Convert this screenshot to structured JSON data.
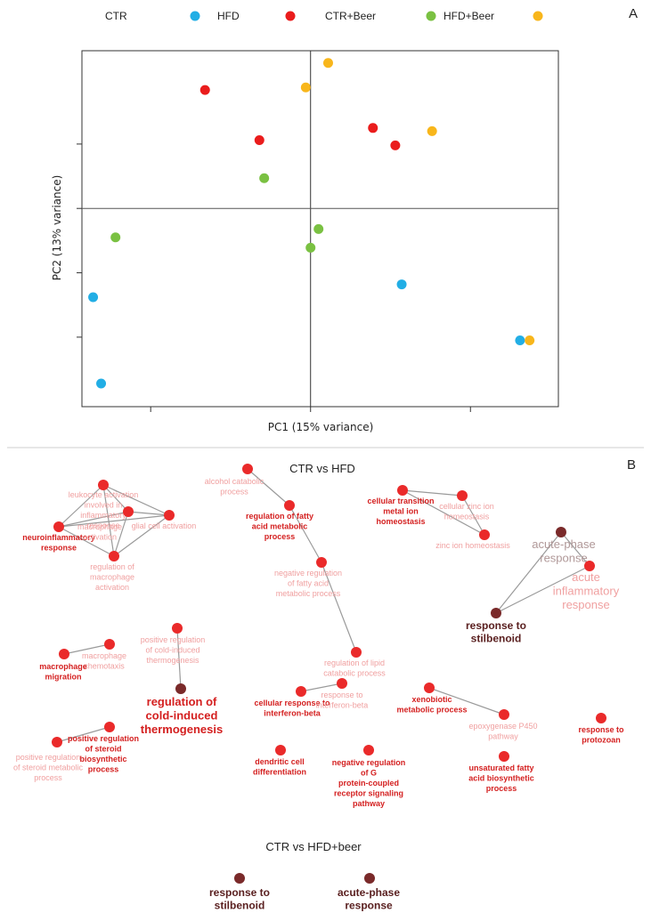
{
  "panel_a": {
    "letter": "A",
    "legend": [
      {
        "label": "CTR",
        "color": "#22aee5"
      },
      {
        "label": "HFD",
        "color": "#ea1c1c"
      },
      {
        "label": "CTR+Beer",
        "color": "#7ac142"
      },
      {
        "label": "HFD+Beer",
        "color": "#f8b61b"
      }
    ],
    "chart_data": {
      "type": "scatter",
      "xlabel": "PC1 (15% variance)",
      "ylabel": "PC2 (13% variance)",
      "x_ticks": [
        -10,
        0,
        10
      ],
      "y_ticks": [
        -20,
        -10,
        0,
        10
      ],
      "xlim": [
        -14.3,
        15.5
      ],
      "ylim": [
        -30.8,
        24.5
      ],
      "x_zero_line": 0,
      "y_zero_line": 0,
      "grid": false,
      "legend_position": "top",
      "series": [
        {
          "name": "CTR",
          "color": "#22aee5",
          "points": [
            [
              -13.6,
              -13.8
            ],
            [
              -13.1,
              -27.2
            ],
            [
              5.7,
              -11.8
            ],
            [
              13.1,
              -20.5
            ]
          ]
        },
        {
          "name": "HFD",
          "color": "#ea1c1c",
          "points": [
            [
              -6.6,
              18.4
            ],
            [
              -3.2,
              10.6
            ],
            [
              3.9,
              12.5
            ],
            [
              5.3,
              9.8
            ]
          ]
        },
        {
          "name": "CTR+Beer",
          "color": "#7ac142",
          "points": [
            [
              -12.2,
              -4.5
            ],
            [
              -2.9,
              4.7
            ],
            [
              0.5,
              -3.2
            ],
            [
              0.0,
              -6.1
            ]
          ]
        },
        {
          "name": "HFD+Beer",
          "color": "#f8b61b",
          "points": [
            [
              1.1,
              22.6
            ],
            [
              -0.3,
              18.8
            ],
            [
              7.6,
              12.0
            ],
            [
              13.7,
              -20.5
            ]
          ]
        }
      ]
    }
  },
  "panel_b": {
    "letter": "B",
    "title_top": "CTR vs HFD",
    "title_bottom": "CTR vs HFD+beer",
    "node_colors": {
      "main": "#ea2a2a",
      "dark": "#7a2a2a"
    },
    "label_colors": {
      "bold": "#d42020",
      "faint": "#f0a0a0",
      "dark": "#5a2020",
      "grey": "#b09898"
    },
    "nodes": [
      {
        "id": "n1",
        "style": "main",
        "lines": [
          "leukocyte activation",
          "involved in",
          "inflammatory",
          "response"
        ],
        "tone": "faint",
        "size": 9
      },
      {
        "id": "n2",
        "style": "main",
        "lines": [
          "neuroinflammatory",
          "response"
        ],
        "tone": "bold",
        "size": 9
      },
      {
        "id": "n3",
        "style": "main",
        "lines": [
          "glial cell activation"
        ],
        "tone": "faint",
        "size": 9
      },
      {
        "id": "n4",
        "style": "main",
        "lines": [
          "regulation of",
          "macrophage",
          "activation"
        ],
        "tone": "faint",
        "size": 9
      },
      {
        "id": "n5",
        "style": "main",
        "lines": [
          "macrophage",
          "activation"
        ],
        "tone": "faint",
        "size": 9
      },
      {
        "id": "n6",
        "style": "main",
        "lines": [
          "alcohol catabolic",
          "process"
        ],
        "tone": "faint",
        "size": 9
      },
      {
        "id": "n7",
        "style": "main",
        "lines": [
          "regulation of fatty",
          "acid metabolic",
          "process"
        ],
        "tone": "bold",
        "size": 9
      },
      {
        "id": "n8",
        "style": "main",
        "lines": [
          "negative regulation",
          "of fatty acid",
          "metabolic process"
        ],
        "tone": "faint",
        "size": 9
      },
      {
        "id": "n9",
        "style": "main",
        "lines": [
          "regulation of lipid",
          "catabolic process"
        ],
        "tone": "faint",
        "size": 9
      },
      {
        "id": "n10",
        "style": "main",
        "lines": [
          "cellular transition",
          "metal ion",
          "homeostasis"
        ],
        "tone": "bold",
        "size": 9
      },
      {
        "id": "n11",
        "style": "main",
        "lines": [
          "cellular zinc ion",
          "homeostasis"
        ],
        "tone": "faint",
        "size": 9
      },
      {
        "id": "n12",
        "style": "main",
        "lines": [
          "zinc ion homeostasis"
        ],
        "tone": "faint",
        "size": 9
      },
      {
        "id": "n13",
        "style": "dark",
        "lines": [
          "acute-phase",
          "response"
        ],
        "tone": "grey",
        "size": 13
      },
      {
        "id": "n14",
        "style": "main",
        "lines": [
          "acute",
          "inflammatory",
          "response"
        ],
        "tone": "faint",
        "size": 13
      },
      {
        "id": "n15",
        "style": "dark",
        "lines": [
          "response to",
          "stilbenoid"
        ],
        "tone": "dark",
        "size": 12
      },
      {
        "id": "n16",
        "style": "main",
        "lines": [
          "macrophage",
          "chemotaxis"
        ],
        "tone": "faint",
        "size": 9
      },
      {
        "id": "n17",
        "style": "main",
        "lines": [
          "macrophage",
          "migration"
        ],
        "tone": "bold",
        "size": 9
      },
      {
        "id": "n18",
        "style": "main",
        "lines": [
          "positive regulation",
          "of cold-induced",
          "thermogenesis"
        ],
        "tone": "faint",
        "size": 9
      },
      {
        "id": "n19",
        "style": "dark",
        "lines": [
          "regulation of",
          "cold-induced",
          "thermogenesis"
        ],
        "tone": "bold",
        "size": 13
      },
      {
        "id": "n20",
        "style": "main",
        "lines": [
          "positive regulation",
          "of steroid metabolic",
          "process"
        ],
        "tone": "faint",
        "size": 9
      },
      {
        "id": "n21",
        "style": "main",
        "lines": [
          "positive regulation",
          "of steroid",
          "biosynthetic",
          "process"
        ],
        "tone": "bold",
        "size": 9
      },
      {
        "id": "n22",
        "style": "main",
        "lines": [
          "cellular response to",
          "interferon-beta"
        ],
        "tone": "bold",
        "size": 9
      },
      {
        "id": "n23",
        "style": "main",
        "lines": [
          "response to",
          "interferon-beta"
        ],
        "tone": "faint",
        "size": 9
      },
      {
        "id": "n24",
        "style": "main",
        "lines": [
          "xenobiotic",
          "metabolic process"
        ],
        "tone": "bold",
        "size": 9
      },
      {
        "id": "n25",
        "style": "main",
        "lines": [
          "epoxygenase P450",
          "pathway"
        ],
        "tone": "faint",
        "size": 9
      },
      {
        "id": "n26",
        "style": "main",
        "lines": [
          "response to",
          "protozoan"
        ],
        "tone": "bold",
        "size": 9
      },
      {
        "id": "n27",
        "style": "main",
        "lines": [
          "dendritic cell",
          "differentiation"
        ],
        "tone": "bold",
        "size": 9
      },
      {
        "id": "n28",
        "style": "main",
        "lines": [
          "negative regulation",
          "of G",
          "protein-coupled",
          "receptor signaling",
          "pathway"
        ],
        "tone": "bold",
        "size": 9
      },
      {
        "id": "n29",
        "style": "main",
        "lines": [
          "unsaturated fatty",
          "acid biosynthetic",
          "process"
        ],
        "tone": "bold",
        "size": 9
      },
      {
        "id": "n30",
        "style": "dark",
        "lines": [
          "response to",
          "stilbenoid"
        ],
        "tone": "dark",
        "size": 12
      },
      {
        "id": "n31",
        "style": "dark",
        "lines": [
          "acute-phase",
          "response"
        ],
        "tone": "dark",
        "size": 12
      }
    ],
    "edges": [
      [
        "n1",
        "n2"
      ],
      [
        "n1",
        "n3"
      ],
      [
        "n1",
        "n4"
      ],
      [
        "n1",
        "n5"
      ],
      [
        "n2",
        "n3"
      ],
      [
        "n2",
        "n4"
      ],
      [
        "n2",
        "n5"
      ],
      [
        "n3",
        "n4"
      ],
      [
        "n3",
        "n5"
      ],
      [
        "n4",
        "n5"
      ],
      [
        "n6",
        "n7"
      ],
      [
        "n7",
        "n8"
      ],
      [
        "n8",
        "n9"
      ],
      [
        "n10",
        "n11"
      ],
      [
        "n10",
        "n12"
      ],
      [
        "n11",
        "n12"
      ],
      [
        "n13",
        "n14"
      ],
      [
        "n13",
        "n15"
      ],
      [
        "n14",
        "n15"
      ],
      [
        "n16",
        "n17"
      ],
      [
        "n18",
        "n19"
      ],
      [
        "n20",
        "n21"
      ],
      [
        "n22",
        "n23"
      ],
      [
        "n24",
        "n25"
      ]
    ]
  }
}
